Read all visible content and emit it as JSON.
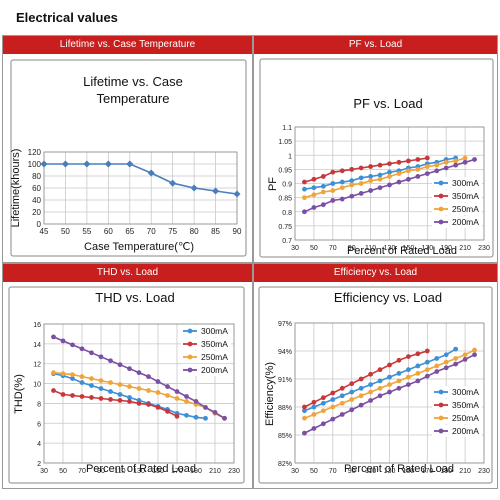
{
  "page_title": "Electrical values",
  "panels": [
    {
      "header": "Lifetime vs. Case Temperature"
    },
    {
      "header": "PF vs. Load"
    },
    {
      "header": "THD vs. Load"
    },
    {
      "header": "Efficiency vs. Load"
    }
  ],
  "colors": {
    "header_red": "#c81e1e",
    "series_300mA": "#3d8fd6",
    "series_350mA": "#c8383a",
    "series_250mA": "#f0a43a",
    "series_200mA": "#7b4fa3",
    "lifetime_line": "#4a7ebb"
  },
  "chart_data": [
    {
      "id": "lifetime",
      "type": "line",
      "title": "Lifetime vs. Case Temperature",
      "title_lines": [
        "Lifetime vs. Case",
        "Temperature"
      ],
      "xlabel": "Case Temperature(℃)",
      "ylabel": "Lifetime(khours)",
      "xlim": [
        45,
        90
      ],
      "ylim": [
        0,
        120
      ],
      "xticks": [
        45,
        50,
        55,
        60,
        65,
        70,
        75,
        80,
        85,
        90
      ],
      "yticks": [
        0,
        20,
        40,
        60,
        80,
        100,
        120
      ],
      "grid": true,
      "legend": "none",
      "series": [
        {
          "x": [
            45,
            50,
            55,
            60,
            65,
            70,
            75,
            80,
            85,
            90
          ],
          "y": [
            100,
            100,
            100,
            100,
            100,
            85,
            68,
            60,
            55,
            50
          ]
        }
      ]
    },
    {
      "id": "pf",
      "type": "line",
      "title": "PF vs. Load",
      "xlabel": "Percent of Rated Load",
      "ylabel": "PF",
      "xlim": [
        30,
        230
      ],
      "ylim": [
        0.7,
        1.1
      ],
      "xticks": [
        30,
        50,
        70,
        90,
        110,
        130,
        150,
        170,
        190,
        210,
        230
      ],
      "yticks": [
        0.7,
        0.75,
        0.8,
        0.85,
        0.9,
        0.95,
        1,
        1.05,
        1.1
      ],
      "ytick_labels": [
        "0.7",
        "0.75",
        "0.8",
        "0.85",
        "0.9",
        "0.95",
        "1",
        "1.05",
        "1.1"
      ],
      "grid": true,
      "legend": "right",
      "series": [
        {
          "name": "300mA",
          "x": [
            40,
            50,
            60,
            70,
            80,
            90,
            100,
            110,
            120,
            130,
            140,
            150,
            160,
            170,
            180,
            190,
            200
          ],
          "y": [
            0.88,
            0.885,
            0.89,
            0.9,
            0.905,
            0.91,
            0.92,
            0.925,
            0.93,
            0.94,
            0.945,
            0.955,
            0.96,
            0.97,
            0.975,
            0.985,
            0.99
          ]
        },
        {
          "name": "350mA",
          "x": [
            40,
            50,
            60,
            70,
            80,
            90,
            100,
            110,
            120,
            130,
            140,
            150,
            160,
            170
          ],
          "y": [
            0.905,
            0.915,
            0.925,
            0.94,
            0.945,
            0.95,
            0.955,
            0.96,
            0.965,
            0.97,
            0.975,
            0.98,
            0.985,
            0.99
          ]
        },
        {
          "name": "250mA",
          "x": [
            40,
            50,
            60,
            70,
            80,
            90,
            100,
            110,
            120,
            130,
            140,
            150,
            160,
            170,
            180,
            190,
            200,
            210
          ],
          "y": [
            0.85,
            0.86,
            0.87,
            0.875,
            0.885,
            0.895,
            0.9,
            0.91,
            0.915,
            0.925,
            0.935,
            0.945,
            0.95,
            0.96,
            0.965,
            0.975,
            0.98,
            0.99
          ]
        },
        {
          "name": "200mA",
          "x": [
            40,
            50,
            60,
            70,
            80,
            90,
            100,
            110,
            120,
            130,
            140,
            150,
            160,
            170,
            180,
            190,
            200,
            210,
            220
          ],
          "y": [
            0.8,
            0.815,
            0.825,
            0.84,
            0.845,
            0.855,
            0.865,
            0.875,
            0.885,
            0.895,
            0.905,
            0.915,
            0.925,
            0.935,
            0.945,
            0.955,
            0.965,
            0.975,
            0.985
          ]
        }
      ]
    },
    {
      "id": "thd",
      "type": "line",
      "title": "THD vs. Load",
      "xlabel": "Percent of Rated Load",
      "ylabel": "THD(%)",
      "xlim": [
        30,
        230
      ],
      "ylim": [
        2,
        16
      ],
      "xticks": [
        30,
        50,
        70,
        90,
        110,
        130,
        150,
        170,
        190,
        210,
        230
      ],
      "yticks": [
        2,
        4,
        6,
        8,
        10,
        12,
        14,
        16
      ],
      "grid": true,
      "legend": "top-right",
      "series": [
        {
          "name": "300mA",
          "x": [
            40,
            50,
            60,
            70,
            80,
            90,
            100,
            110,
            120,
            130,
            140,
            150,
            160,
            170,
            180,
            190,
            200
          ],
          "y": [
            11,
            10.8,
            10.5,
            10.1,
            9.8,
            9.5,
            9.2,
            8.9,
            8.6,
            8.3,
            8.0,
            7.7,
            7.4,
            7.0,
            6.8,
            6.6,
            6.5
          ]
        },
        {
          "name": "350mA",
          "x": [
            40,
            50,
            60,
            70,
            80,
            90,
            100,
            110,
            120,
            130,
            140,
            150,
            160,
            170
          ],
          "y": [
            9.3,
            8.9,
            8.8,
            8.7,
            8.6,
            8.5,
            8.4,
            8.3,
            8.2,
            8.0,
            7.9,
            7.6,
            7.2,
            6.7
          ]
        },
        {
          "name": "250mA",
          "x": [
            40,
            50,
            60,
            70,
            80,
            90,
            100,
            110,
            120,
            130,
            140,
            150,
            160,
            170,
            180,
            190,
            200,
            210,
            220
          ],
          "y": [
            11.1,
            11,
            10.9,
            10.7,
            10.5,
            10.3,
            10.1,
            9.9,
            9.7,
            9.5,
            9.3,
            9.1,
            8.8,
            8.5,
            8.2,
            7.9,
            7.6,
            7.0,
            6.5
          ]
        },
        {
          "name": "200mA",
          "x": [
            40,
            50,
            60,
            70,
            80,
            90,
            100,
            110,
            120,
            130,
            140,
            150,
            160,
            170,
            180,
            190,
            200,
            210,
            220
          ],
          "y": [
            14.7,
            14.3,
            13.9,
            13.5,
            13.1,
            12.7,
            12.3,
            11.9,
            11.5,
            11.1,
            10.7,
            10.2,
            9.7,
            9.2,
            8.7,
            8.2,
            7.6,
            7.1,
            6.5
          ]
        }
      ]
    },
    {
      "id": "efficiency",
      "type": "line",
      "title": "Efficiency vs. Load",
      "xlabel": "Percent of Rated Load",
      "ylabel": "Efficiency(%)",
      "xlim": [
        30,
        230
      ],
      "ylim": [
        82,
        97
      ],
      "xticks": [
        30,
        50,
        70,
        90,
        110,
        130,
        150,
        170,
        190,
        210,
        230
      ],
      "yticks": [
        82,
        85,
        88,
        91,
        94,
        97
      ],
      "ytick_labels": [
        "82%",
        "85%",
        "88%",
        "91%",
        "94%",
        "97%"
      ],
      "grid": true,
      "legend": "bottom-right",
      "series": [
        {
          "name": "300mA",
          "x": [
            40,
            50,
            60,
            70,
            80,
            90,
            100,
            110,
            120,
            130,
            140,
            150,
            160,
            170,
            180,
            190,
            200
          ],
          "y": [
            87.6,
            88.0,
            88.4,
            88.8,
            89.2,
            89.6,
            90.0,
            90.4,
            90.8,
            91.2,
            91.6,
            92.0,
            92.4,
            92.8,
            93.2,
            93.6,
            94.2
          ]
        },
        {
          "name": "350mA",
          "x": [
            40,
            50,
            60,
            70,
            80,
            90,
            100,
            110,
            120,
            130,
            140,
            150,
            160,
            170
          ],
          "y": [
            88.0,
            88.5,
            89.0,
            89.5,
            90.0,
            90.5,
            91.0,
            91.5,
            92.0,
            92.5,
            93.0,
            93.4,
            93.7,
            94.0
          ]
        },
        {
          "name": "250mA",
          "x": [
            40,
            50,
            60,
            70,
            80,
            90,
            100,
            110,
            120,
            130,
            140,
            150,
            160,
            170,
            180,
            190,
            200,
            210,
            220
          ],
          "y": [
            86.8,
            87.2,
            87.6,
            88.0,
            88.4,
            88.8,
            89.2,
            89.6,
            90.0,
            90.4,
            90.8,
            91.2,
            91.6,
            92.0,
            92.4,
            92.8,
            93.2,
            93.6,
            94.1
          ]
        },
        {
          "name": "200mA",
          "x": [
            40,
            50,
            60,
            70,
            80,
            90,
            100,
            110,
            120,
            130,
            140,
            150,
            160,
            170,
            180,
            190,
            200,
            210,
            220
          ],
          "y": [
            85.2,
            85.7,
            86.2,
            86.7,
            87.2,
            87.7,
            88.2,
            88.7,
            89.2,
            89.6,
            90.0,
            90.4,
            90.8,
            91.3,
            91.8,
            92.2,
            92.6,
            93.1,
            93.6
          ]
        }
      ]
    }
  ]
}
